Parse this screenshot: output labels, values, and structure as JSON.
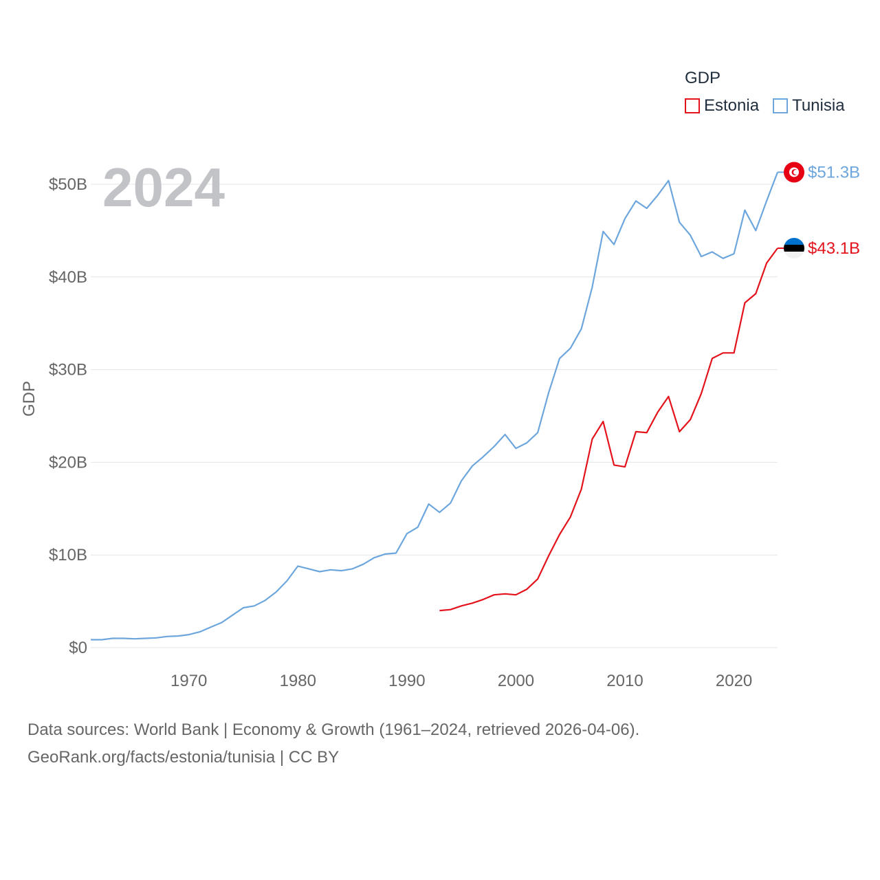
{
  "legend": {
    "title": "GDP",
    "items": [
      {
        "label": "Estonia",
        "color": "#e3121b"
      },
      {
        "label": "Tunisia",
        "color": "#6ca6dd"
      }
    ]
  },
  "footer": {
    "line1": "Data sources: World Bank | Economy & Growth (1961–2024, retrieved 2026-04-06).",
    "line2": "GeoRank.org/facts/estonia/tunisia | CC BY"
  },
  "chart_data": {
    "type": "line",
    "year_label": "2024",
    "ylabel": "GDP",
    "xlim": [
      1961,
      2024
    ],
    "ylim": [
      0,
      50
    ],
    "x_ticks": [
      1970,
      1980,
      1990,
      2000,
      2010,
      2020
    ],
    "y_ticks": [
      {
        "value": 0,
        "label": "$0"
      },
      {
        "value": 10,
        "label": "$10B"
      },
      {
        "value": 20,
        "label": "$20B"
      },
      {
        "value": 30,
        "label": "$30B"
      },
      {
        "value": 40,
        "label": "$40B"
      },
      {
        "value": 50,
        "label": "$50B"
      }
    ],
    "units": "billions USD",
    "series": [
      {
        "name": "Tunisia",
        "color": "#6ca6dd",
        "end_label": "$51.3B",
        "flag": "tunisia-flag",
        "points": [
          [
            1961,
            0.85
          ],
          [
            1962,
            0.85
          ],
          [
            1963,
            1.0
          ],
          [
            1964,
            1.0
          ],
          [
            1965,
            0.95
          ],
          [
            1966,
            1.0
          ],
          [
            1967,
            1.05
          ],
          [
            1968,
            1.2
          ],
          [
            1969,
            1.25
          ],
          [
            1970,
            1.4
          ],
          [
            1971,
            1.7
          ],
          [
            1972,
            2.2
          ],
          [
            1973,
            2.7
          ],
          [
            1974,
            3.5
          ],
          [
            1975,
            4.3
          ],
          [
            1976,
            4.5
          ],
          [
            1977,
            5.1
          ],
          [
            1978,
            6.0
          ],
          [
            1979,
            7.2
          ],
          [
            1980,
            8.8
          ],
          [
            1981,
            8.5
          ],
          [
            1982,
            8.2
          ],
          [
            1983,
            8.4
          ],
          [
            1984,
            8.3
          ],
          [
            1985,
            8.5
          ],
          [
            1986,
            9.0
          ],
          [
            1987,
            9.7
          ],
          [
            1988,
            10.1
          ],
          [
            1989,
            10.2
          ],
          [
            1990,
            12.3
          ],
          [
            1991,
            13.0
          ],
          [
            1992,
            15.5
          ],
          [
            1993,
            14.6
          ],
          [
            1994,
            15.6
          ],
          [
            1995,
            18.0
          ],
          [
            1996,
            19.6
          ],
          [
            1997,
            20.6
          ],
          [
            1998,
            21.7
          ],
          [
            1999,
            23.0
          ],
          [
            2000,
            21.5
          ],
          [
            2001,
            22.1
          ],
          [
            2002,
            23.2
          ],
          [
            2003,
            27.5
          ],
          [
            2004,
            31.2
          ],
          [
            2005,
            32.3
          ],
          [
            2006,
            34.4
          ],
          [
            2007,
            38.9
          ],
          [
            2008,
            44.9
          ],
          [
            2009,
            43.5
          ],
          [
            2010,
            46.3
          ],
          [
            2011,
            48.2
          ],
          [
            2012,
            47.4
          ],
          [
            2013,
            48.8
          ],
          [
            2014,
            50.4
          ],
          [
            2015,
            45.9
          ],
          [
            2016,
            44.5
          ],
          [
            2017,
            42.2
          ],
          [
            2018,
            42.7
          ],
          [
            2019,
            42.0
          ],
          [
            2020,
            42.5
          ],
          [
            2021,
            47.2
          ],
          [
            2022,
            45.0
          ],
          [
            2023,
            48.2
          ],
          [
            2024,
            51.3
          ]
        ]
      },
      {
        "name": "Estonia",
        "color": "#e3121b",
        "end_label": "$43.1B",
        "flag": "estonia-flag",
        "points": [
          [
            1993,
            4.0
          ],
          [
            1994,
            4.1
          ],
          [
            1995,
            4.5
          ],
          [
            1996,
            4.8
          ],
          [
            1997,
            5.2
          ],
          [
            1998,
            5.7
          ],
          [
            1999,
            5.8
          ],
          [
            2000,
            5.7
          ],
          [
            2001,
            6.3
          ],
          [
            2002,
            7.4
          ],
          [
            2003,
            9.9
          ],
          [
            2004,
            12.2
          ],
          [
            2005,
            14.1
          ],
          [
            2006,
            17.1
          ],
          [
            2007,
            22.5
          ],
          [
            2008,
            24.4
          ],
          [
            2009,
            19.7
          ],
          [
            2010,
            19.5
          ],
          [
            2011,
            23.3
          ],
          [
            2012,
            23.2
          ],
          [
            2013,
            25.4
          ],
          [
            2014,
            27.1
          ],
          [
            2015,
            23.3
          ],
          [
            2016,
            24.6
          ],
          [
            2017,
            27.4
          ],
          [
            2018,
            31.2
          ],
          [
            2019,
            31.8
          ],
          [
            2020,
            31.8
          ],
          [
            2021,
            37.2
          ],
          [
            2022,
            38.2
          ],
          [
            2023,
            41.5
          ],
          [
            2024,
            43.1
          ]
        ]
      }
    ]
  }
}
